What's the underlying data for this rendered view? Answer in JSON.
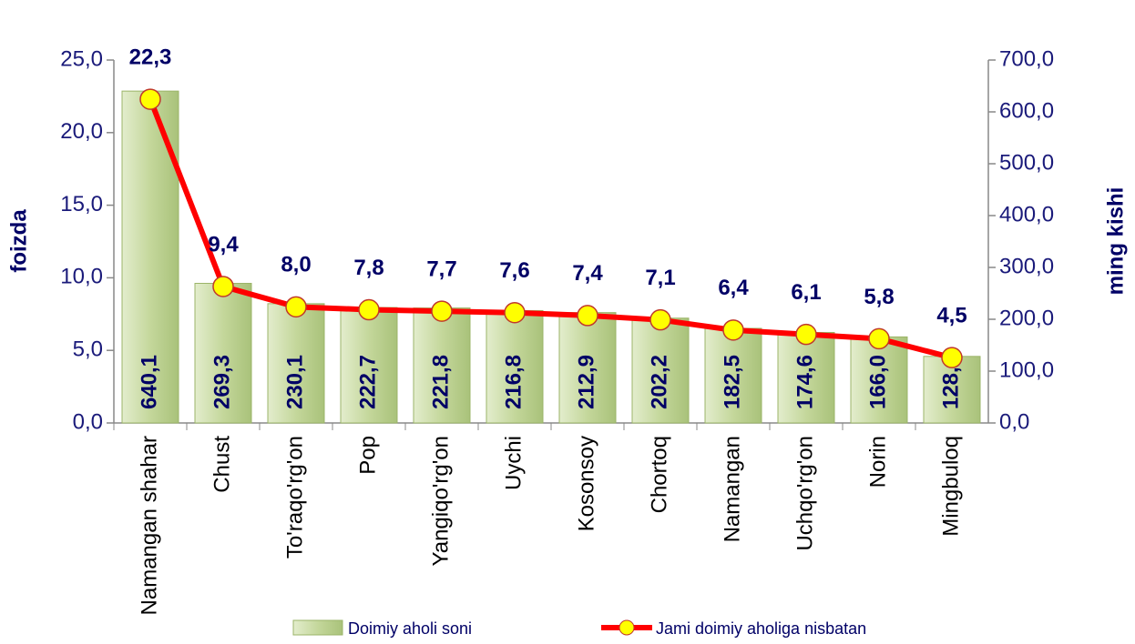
{
  "chart_data": {
    "type": "bar_line",
    "y_label": "foizda",
    "y2_label": "ming kishi",
    "categories": [
      "Namangan shahar",
      "Chust",
      "To'raqo'rg'on",
      "Pop",
      "Yangiqo'rg'on",
      "Uychi",
      "Kosonsoy",
      "Chortoq",
      "Namangan",
      "Uchqo'rg'on",
      "Norin",
      "Mingbuloq"
    ],
    "series": [
      {
        "name": "Doimiy aholi soni",
        "type": "bar",
        "axis": "y2",
        "color": "#c4d79b",
        "values": [
          640.1,
          269.3,
          230.1,
          222.7,
          221.8,
          216.8,
          212.9,
          202.2,
          182.5,
          174.6,
          166.0,
          128.4
        ],
        "value_labels": [
          "640,1",
          "269,3",
          "230,1",
          "222,7",
          "221,8",
          "216,8",
          "212,9",
          "202,2",
          "182,5",
          "174,6",
          "166,0",
          "128,4"
        ]
      },
      {
        "name": "Jami doimiy aholiga nisbatan",
        "type": "line",
        "axis": "y",
        "color": "#ff0000",
        "marker_color": "#ffff00",
        "values": [
          22.3,
          9.4,
          8.0,
          7.8,
          7.7,
          7.6,
          7.4,
          7.1,
          6.4,
          6.1,
          5.8,
          4.5
        ],
        "value_labels": [
          "22,3",
          "9,4",
          "8,0",
          "7,8",
          "7,7",
          "7,6",
          "7,4",
          "7,1",
          "6,4",
          "6,1",
          "5,8",
          "4,5"
        ]
      }
    ],
    "ylim": [
      0,
      25
    ],
    "yticks": [
      {
        "value": 0,
        "label": "0,0"
      },
      {
        "value": 5,
        "label": "5,0"
      },
      {
        "value": 10,
        "label": "10,0"
      },
      {
        "value": 15,
        "label": "15,0"
      },
      {
        "value": 20,
        "label": "20,0"
      },
      {
        "value": 25,
        "label": "25,0"
      }
    ],
    "y2lim": [
      0,
      700
    ],
    "y2ticks": [
      {
        "value": 0,
        "label": "0,0"
      },
      {
        "value": 100,
        "label": "100,0"
      },
      {
        "value": 200,
        "label": "200,0"
      },
      {
        "value": 300,
        "label": "300,0"
      },
      {
        "value": 400,
        "label": "400,0"
      },
      {
        "value": 500,
        "label": "500,0"
      },
      {
        "value": 600,
        "label": "600,0"
      },
      {
        "value": 700,
        "label": "700,0"
      }
    ],
    "grid": false,
    "legend": "bottom"
  }
}
